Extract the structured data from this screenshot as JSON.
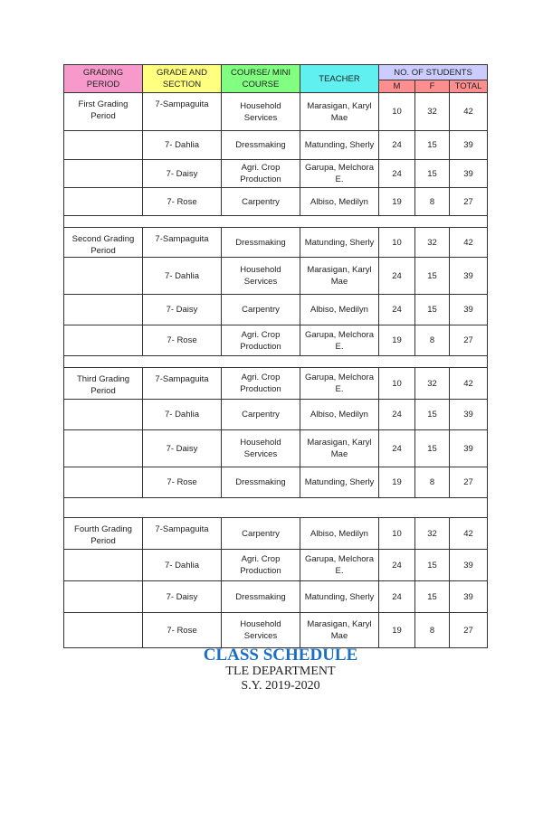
{
  "headers": {
    "grading_period": "GRADING PERIOD",
    "grade_section": "GRADE AND SECTION",
    "course": "COURSE/ MINI COURSE",
    "teacher": "TEACHER",
    "students": "NO. OF STUDENTS",
    "m": "M",
    "f": "F",
    "total": "TOTAL"
  },
  "colors": {
    "grading_period": "#f79acb",
    "grade_section": "#ffff80",
    "course": "#80ff80",
    "teacher": "#60f0f0",
    "students": "#ccccff",
    "mft": "#ff8f8f",
    "title": "#1a6fc4"
  },
  "periods": [
    {
      "name": "First Grading Period",
      "rows": [
        {
          "section": "7-Sampaguita",
          "course": "Household Services",
          "teacher": "Marasigan, Karyl Mae",
          "m": "10",
          "f": "32",
          "total": "42"
        },
        {
          "section": "7- Dahlia",
          "course": "Dressmaking",
          "teacher": "Matunding, Sherly",
          "m": "24",
          "f": "15",
          "total": "39"
        },
        {
          "section": "7- Daisy",
          "course": "Agri. Crop Production",
          "teacher": "Garupa, Melchora E.",
          "m": "24",
          "f": "15",
          "total": "39"
        },
        {
          "section": "7- Rose",
          "course": "Carpentry",
          "teacher": "Albiso, Medilyn",
          "m": "19",
          "f": "8",
          "total": "27"
        }
      ]
    },
    {
      "name": "Second Grading Period",
      "rows": [
        {
          "section": "7-Sampaguita",
          "course": "Dressmaking",
          "teacher": "Matunding, Sherly",
          "m": "10",
          "f": "32",
          "total": "42"
        },
        {
          "section": "7- Dahlia",
          "course": "Household Services",
          "teacher": "Marasigan, Karyl Mae",
          "m": "24",
          "f": "15",
          "total": "39"
        },
        {
          "section": "7- Daisy",
          "course": "Carpentry",
          "teacher": "Albiso, Medilyn",
          "m": "24",
          "f": "15",
          "total": "39"
        },
        {
          "section": "7- Rose",
          "course": "Agri. Crop Production",
          "teacher": "Garupa, Melchora E.",
          "m": "19",
          "f": "8",
          "total": "27"
        }
      ]
    },
    {
      "name": "Third Grading Period",
      "rows": [
        {
          "section": "7-Sampaguita",
          "course": "Agri. Crop Production",
          "teacher": "Garupa, Melchora E.",
          "m": "10",
          "f": "32",
          "total": "42"
        },
        {
          "section": "7- Dahlia",
          "course": "Carpentry",
          "teacher": "Albiso, Medilyn",
          "m": "24",
          "f": "15",
          "total": "39"
        },
        {
          "section": "7- Daisy",
          "course": "Household Services",
          "teacher": "Marasigan, Karyl Mae",
          "m": "24",
          "f": "15",
          "total": "39"
        },
        {
          "section": "7- Rose",
          "course": "Dressmaking",
          "teacher": "Matunding, Sherly",
          "m": "19",
          "f": "8",
          "total": "27"
        }
      ]
    },
    {
      "name": "Fourth  Grading Period",
      "rows": [
        {
          "section": "7-Sampaguita",
          "course": "Carpentry",
          "teacher": "Albiso, Medilyn",
          "m": "10",
          "f": "32",
          "total": "42"
        },
        {
          "section": "7- Dahlia",
          "course": "Agri. Crop Production",
          "teacher": "Garupa, Melchora E.",
          "m": "24",
          "f": "15",
          "total": "39"
        },
        {
          "section": "7- Daisy",
          "course": "Dressmaking",
          "teacher": "Matunding, Sherly",
          "m": "24",
          "f": "15",
          "total": "39"
        },
        {
          "section": "7- Rose",
          "course": "Household Services",
          "teacher": "Marasigan, Karyl Mae",
          "m": "19",
          "f": "8",
          "total": "27"
        }
      ]
    }
  ],
  "title": "CLASS SCHEDULE",
  "department": "TLE DEPARTMENT",
  "school_year": "S.Y. 2019-2020"
}
